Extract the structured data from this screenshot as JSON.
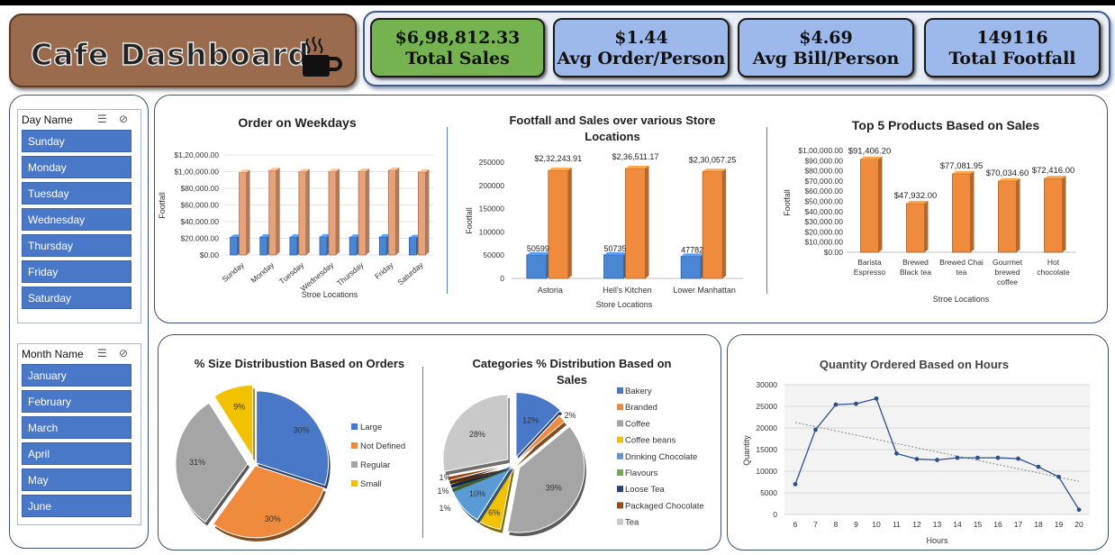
{
  "title": "Cafe Dashboard",
  "kpis": [
    {
      "value": "$6,98,812.33",
      "label": "Total Sales",
      "color": "#74b34f"
    },
    {
      "value": "$1.44",
      "label": "Avg Order/Person",
      "color": "#9db8eb"
    },
    {
      "value": "$4.69",
      "label": "Avg Bill/Person",
      "color": "#9db8eb"
    },
    {
      "value": "149116",
      "label": "Total Footfall",
      "color": "#9db8eb"
    }
  ],
  "slicers": {
    "day": {
      "header": "Day Name",
      "items": [
        "Sunday",
        "Monday",
        "Tuesday",
        "Wednesday",
        "Thursday",
        "Friday",
        "Saturday"
      ]
    },
    "month": {
      "header": "Month Name",
      "items": [
        "January",
        "February",
        "March",
        "April",
        "May",
        "June"
      ]
    }
  },
  "chart_data": [
    {
      "type": "bar",
      "title": "Order on Weekdays",
      "xlabel": "Stroe Locations",
      "ylabel": "Footfall",
      "categories": [
        "Sunday",
        "Monday",
        "Tuesday",
        "Wednesday",
        "Thursday",
        "Friday",
        "Saturday"
      ],
      "yticks": [
        "$0.00",
        "$20,000.00",
        "$40,000.00",
        "$60,000.00",
        "$80,000.00",
        "$1,00,000.00",
        "$1,20,000.00"
      ],
      "ylim": [
        0,
        120000
      ],
      "series": [
        {
          "values": [
            21300,
            21600,
            21500,
            21800,
            21300,
            21600,
            20900
          ],
          "color": "#4a86d4"
        },
        {
          "values": [
            99000,
            101500,
            100000,
            100200,
            100600,
            101800,
            99500
          ],
          "color": "#e8a27a"
        }
      ]
    },
    {
      "type": "bar",
      "title": "Footfall and Sales over various Store Locations",
      "xlabel": "Store Locations",
      "ylabel": "Footfall",
      "categories": [
        "Astoria",
        "Hell's Kitchen",
        "Lower Manhattan"
      ],
      "yticks": [
        "0",
        "50000",
        "100000",
        "150000",
        "200000",
        "250000"
      ],
      "ylim": [
        0,
        250000
      ],
      "series": [
        {
          "values": [
            50599,
            50735,
            47782
          ],
          "labels": [
            "50599",
            "50735",
            "47782"
          ],
          "color": "#4a86d4"
        },
        {
          "values": [
            232243.91,
            236511.17,
            230057.25
          ],
          "labels": [
            "$2,32,243.91",
            "$2,36,511.17",
            "$2,30,057.25"
          ],
          "color": "#f08a3c"
        }
      ]
    },
    {
      "type": "bar",
      "title": "Top 5 Products Based on Sales",
      "xlabel": "Stroe Locations",
      "ylabel": "Footfall",
      "categories": [
        [
          "Barista",
          "Espresso"
        ],
        [
          "Brewed",
          "Black tea"
        ],
        [
          "Brewed Chai",
          "tea"
        ],
        [
          "Gourmet",
          "brewed",
          "coffee"
        ],
        [
          "Hot",
          "chocolate"
        ]
      ],
      "yticks": [
        "$0.00",
        "$10,000.00",
        "$20,000.00",
        "$30,000.00",
        "$40,000.00",
        "$50,000.00",
        "$60,000.00",
        "$70,000.00",
        "$80,000.00",
        "$90,000.00",
        "$1,00,000.00"
      ],
      "ylim": [
        0,
        100000
      ],
      "values": [
        91406.2,
        47932.0,
        77081.95,
        70034.6,
        72416.0
      ],
      "labels": [
        "$91,406.20",
        "$47,932.00",
        "$77,081.95",
        "$70,034.60",
        "$72,416.00"
      ],
      "color": "#f08a3c"
    },
    {
      "type": "pie",
      "title": "% Size Distribustion Based on Orders",
      "slices": [
        {
          "name": "Large",
          "value": 30,
          "color": "#4a78c9"
        },
        {
          "name": "Not Defined",
          "value": 30,
          "color": "#f08a3c"
        },
        {
          "name": "Regular",
          "value": 31,
          "color": "#a5a5a5"
        },
        {
          "name": "Small",
          "value": 9,
          "color": "#f2c100"
        }
      ],
      "labels": [
        "30%",
        "30%",
        "31%",
        "9%"
      ]
    },
    {
      "type": "pie",
      "title": "Categories % Distribution Based on Sales",
      "slices": [
        {
          "name": "Bakery",
          "value": 12,
          "color": "#4a78c9"
        },
        {
          "name": "Branded",
          "value": 2,
          "color": "#f08a3c"
        },
        {
          "name": "Coffee",
          "value": 39,
          "color": "#a5a5a5"
        },
        {
          "name": "Coffee beans",
          "value": 6,
          "color": "#f2c100"
        },
        {
          "name": "Drinking Chocolate",
          "value": 10,
          "color": "#5b9bd5"
        },
        {
          "name": "Flavours",
          "value": 1,
          "color": "#70ad47"
        },
        {
          "name": "Loose Tea",
          "value": 1,
          "color": "#264478"
        },
        {
          "name": "Packaged Chocolate",
          "value": 1,
          "color": "#9e480e"
        },
        {
          "name": "Tea",
          "value": 28,
          "color": "#c9c9c9"
        }
      ],
      "labels": [
        "12%",
        "2%",
        "39%",
        "6%",
        "10%",
        "1%",
        "1%",
        "1%",
        "28%"
      ]
    },
    {
      "type": "line",
      "title": "Quantity Ordered Based on Hours",
      "xlabel": "Hours",
      "ylabel": "Quantity",
      "x": [
        6,
        7,
        8,
        9,
        10,
        11,
        12,
        13,
        14,
        15,
        16,
        17,
        18,
        19,
        20
      ],
      "y": [
        7000,
        19600,
        25400,
        25600,
        26800,
        14100,
        12800,
        12600,
        13100,
        13100,
        13100,
        12900,
        11000,
        8700,
        1100
      ],
      "yticks": [
        "0",
        "5000",
        "10000",
        "15000",
        "20000",
        "25000",
        "30000"
      ],
      "ylim": [
        0,
        30000
      ],
      "trendline": true
    }
  ]
}
